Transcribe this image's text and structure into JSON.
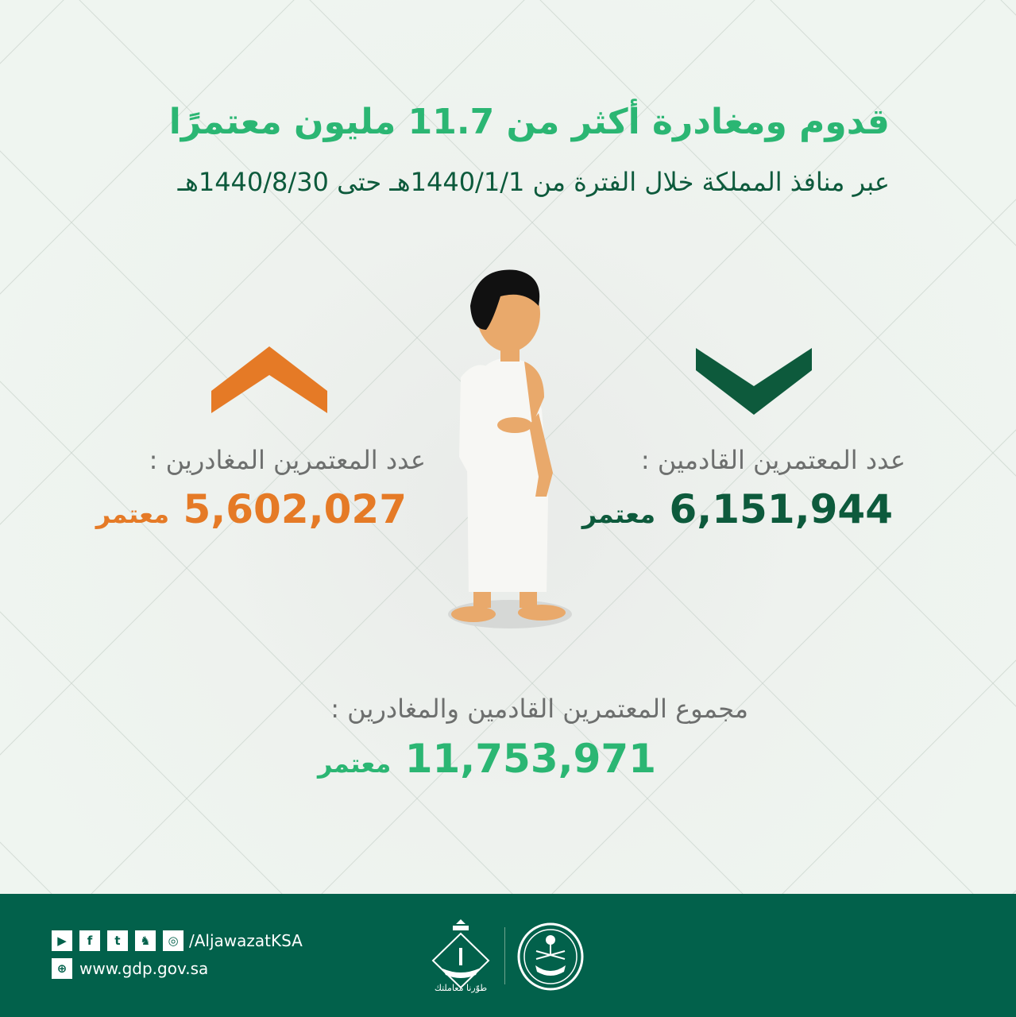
{
  "header": {
    "title": "قدوم ومغادرة أكثر من 11.7 مليون معتمرًا",
    "subtitle": "عبر منافذ المملكة خلال الفترة من 1440/1/1هـ حتى 1440/8/30هـ"
  },
  "arrivals": {
    "label": "عدد المعتمرين القادمين :",
    "value": "6,151,944",
    "unit": "معتمر",
    "color": "#0d5a3c",
    "icon": "chevron-down-icon"
  },
  "departures": {
    "label": "عدد المعتمرين المغادرين :",
    "value": "5,602,027",
    "unit": "معتمر",
    "color": "#e57a26",
    "icon": "chevron-up-icon"
  },
  "total": {
    "label": "مجموع المعتمرين القادمين والمغادرين :",
    "value": "11,753,971",
    "unit": "معتمر",
    "color": "#2bb673"
  },
  "footer": {
    "social_handle": "/AljawazatKSA",
    "website": "www.gdp.gov.sa",
    "slogan": "طوّرنا معاملتك",
    "social_icons": [
      "youtube-icon",
      "facebook-icon",
      "twitter-icon",
      "snapchat-icon",
      "instagram-icon"
    ],
    "background": "#02614b"
  }
}
